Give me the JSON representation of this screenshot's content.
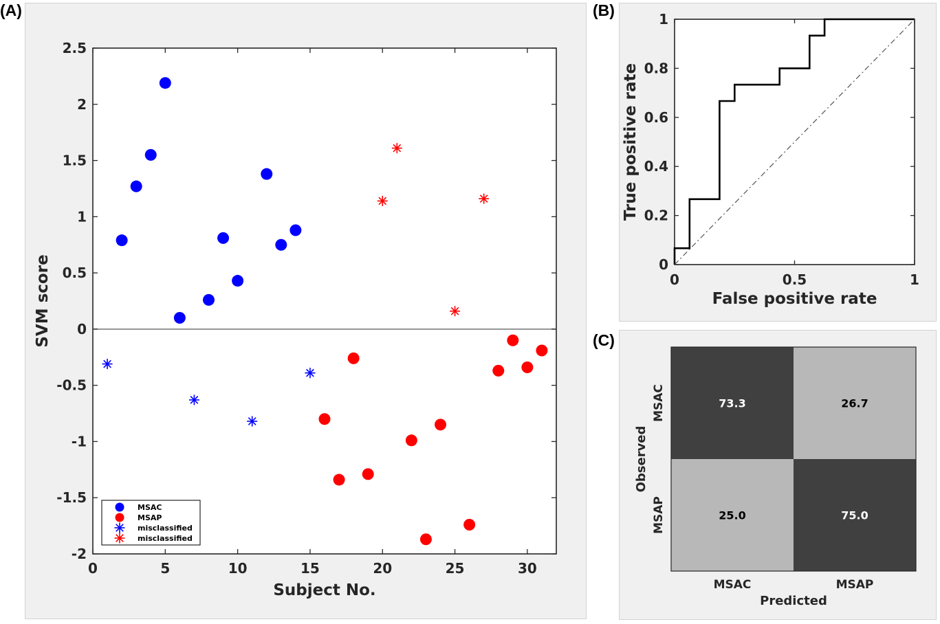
{
  "panel_labels": [
    "(A)",
    "(B)",
    "(C)"
  ],
  "colors": {
    "msac": "#0000ff",
    "msap": "#ff0000",
    "dark_cell": "#404040",
    "light_cell": "#b8b8b8",
    "panel_bg": "#f0f0f0"
  },
  "chart_data": [
    {
      "type": "scatter",
      "title": "",
      "xlabel": "Subject No.",
      "ylabel": "SVM score",
      "xlim": [
        0,
        32
      ],
      "ylim": [
        -2,
        2.5
      ],
      "xticks": [
        0,
        5,
        10,
        15,
        20,
        25,
        30
      ],
      "yticks": [
        2.5,
        2,
        1.5,
        1,
        0.5,
        0,
        -0.5,
        -1,
        -1.5,
        -2
      ],
      "grid": false,
      "zero_line": 0,
      "legend_position": "bottom-left",
      "series": [
        {
          "name": "MSAC",
          "marker": "circle",
          "color": "#0000ff",
          "points": [
            [
              2,
              0.79
            ],
            [
              3,
              1.27
            ],
            [
              4,
              1.55
            ],
            [
              5,
              2.19
            ],
            [
              6,
              0.1
            ],
            [
              8,
              0.26
            ],
            [
              9,
              0.81
            ],
            [
              10,
              0.43
            ],
            [
              12,
              1.38
            ],
            [
              13,
              0.75
            ],
            [
              14,
              0.88
            ]
          ]
        },
        {
          "name": "MSAP",
          "marker": "circle",
          "color": "#ff0000",
          "points": [
            [
              16,
              -0.8
            ],
            [
              17,
              -1.34
            ],
            [
              18,
              -0.26
            ],
            [
              19,
              -1.29
            ],
            [
              22,
              -0.99
            ],
            [
              23,
              -1.87
            ],
            [
              24,
              -0.85
            ],
            [
              26,
              -1.74
            ],
            [
              28,
              -0.37
            ],
            [
              29,
              -0.1
            ],
            [
              30,
              -0.34
            ],
            [
              31,
              -0.19
            ]
          ]
        },
        {
          "name": "misclassified",
          "marker": "asterisk",
          "color": "#0000ff",
          "points": [
            [
              1,
              -0.31
            ],
            [
              7,
              -0.63
            ],
            [
              11,
              -0.82
            ],
            [
              15,
              -0.39
            ]
          ]
        },
        {
          "name": "misclassified",
          "marker": "asterisk",
          "color": "#ff0000",
          "points": [
            [
              20,
              1.14
            ],
            [
              21,
              1.61
            ],
            [
              25,
              0.16
            ],
            [
              27,
              1.16
            ]
          ]
        }
      ]
    },
    {
      "type": "line",
      "title": "",
      "xlabel": "False positive rate",
      "ylabel": "True positive rate",
      "xlim": [
        0,
        1
      ],
      "ylim": [
        0,
        1
      ],
      "xticks": [
        0,
        0.5,
        1
      ],
      "yticks": [
        0,
        0.2,
        0.4,
        0.6,
        0.8,
        1
      ],
      "grid": false,
      "series": [
        {
          "name": "",
          "style": "solid",
          "color": "#000000",
          "points": [
            [
              0,
              0
            ],
            [
              0,
              0.0667
            ],
            [
              0.0625,
              0.0667
            ],
            [
              0.0625,
              0.2667
            ],
            [
              0.1875,
              0.2667
            ],
            [
              0.1875,
              0.6667
            ],
            [
              0.25,
              0.6667
            ],
            [
              0.25,
              0.7333
            ],
            [
              0.4375,
              0.7333
            ],
            [
              0.4375,
              0.8
            ],
            [
              0.5625,
              0.8
            ],
            [
              0.5625,
              0.9333
            ],
            [
              0.625,
              0.9333
            ],
            [
              0.625,
              1
            ],
            [
              1,
              1
            ]
          ]
        },
        {
          "name": "",
          "style": "dashdot",
          "color": "#555555",
          "points": [
            [
              0,
              0
            ],
            [
              1,
              1
            ]
          ]
        }
      ]
    },
    {
      "type": "heatmap",
      "title": "",
      "xlabel": "Predicted",
      "ylabel": "Observed",
      "x_categories": [
        "MSAC",
        "MSAP"
      ],
      "y_categories": [
        "MSAC",
        "MSAP"
      ],
      "values": [
        [
          "73.3",
          "26.7"
        ],
        [
          "25.0",
          "75.0"
        ]
      ]
    }
  ]
}
